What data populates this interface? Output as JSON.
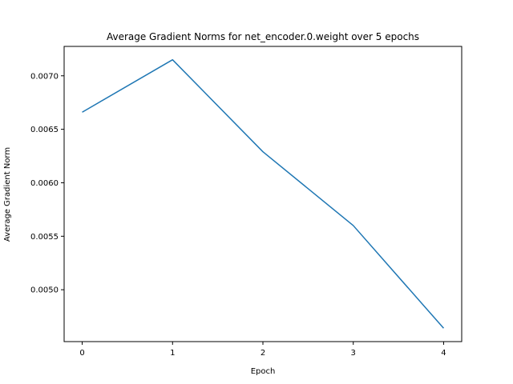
{
  "chart_data": {
    "type": "line",
    "title": "Average Gradient Norms for net_encoder.0.weight over 5 epochs",
    "xlabel": "Epoch",
    "ylabel": "Average Gradient Norm",
    "x": [
      0,
      1,
      2,
      3,
      4
    ],
    "series": [
      {
        "values": [
          0.00666,
          0.00715,
          0.00629,
          0.0056,
          0.00464
        ],
        "color": "#1f77b4"
      }
    ],
    "xlim": [
      -0.2,
      4.2
    ],
    "ylim": [
      0.004515,
      0.007275
    ],
    "x_ticks": [
      {
        "value": 0,
        "label": "0"
      },
      {
        "value": 1,
        "label": "1"
      },
      {
        "value": 2,
        "label": "2"
      },
      {
        "value": 3,
        "label": "3"
      },
      {
        "value": 4,
        "label": "4"
      }
    ],
    "y_ticks": [
      {
        "value": 0.005,
        "label": "0.0050"
      },
      {
        "value": 0.0055,
        "label": "0.0055"
      },
      {
        "value": 0.006,
        "label": "0.0060"
      },
      {
        "value": 0.0065,
        "label": "0.0065"
      },
      {
        "value": 0.007,
        "label": "0.0070"
      }
    ],
    "grid": false,
    "legend": "none"
  }
}
